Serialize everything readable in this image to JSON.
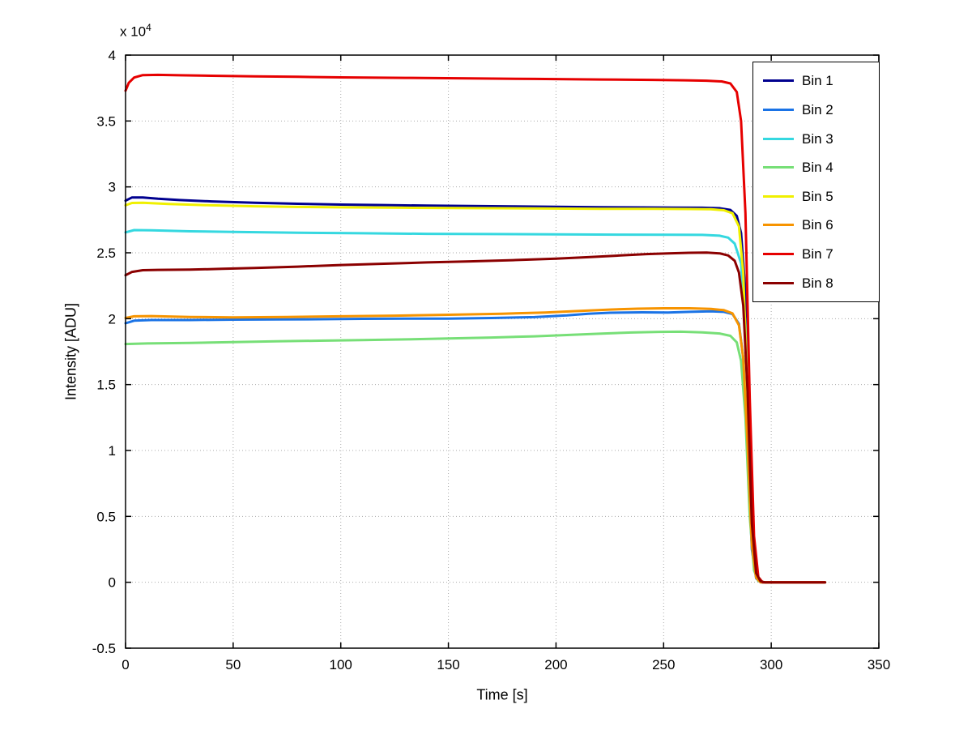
{
  "chart_data": {
    "type": "line",
    "title": "",
    "xlabel": "Time [s]",
    "ylabel": "Intensity [ADU]",
    "y_exponent": {
      "base": "x 10",
      "power": "4"
    },
    "xlim": [
      0,
      350
    ],
    "ylim": [
      -5000,
      40000
    ],
    "x_ticks": {
      "values": [
        0,
        50,
        100,
        150,
        200,
        250,
        300,
        350
      ],
      "labels": [
        "0",
        "50",
        "100",
        "150",
        "200",
        "250",
        "300",
        "350"
      ]
    },
    "y_ticks": {
      "values": [
        -5000,
        0,
        5000,
        10000,
        15000,
        20000,
        25000,
        30000,
        35000,
        40000
      ],
      "labels": [
        "-0.5",
        "0",
        "0.5",
        "1",
        "1.5",
        "2",
        "2.5",
        "3",
        "3.5",
        "4"
      ]
    },
    "grid": "dotted",
    "grid_color": "#aaaaaa",
    "axis_color": "#000000",
    "legend_position": "top-right",
    "series": [
      {
        "name": "Bin 1",
        "color": "#00008F",
        "points": [
          [
            0,
            28950
          ],
          [
            3,
            29200
          ],
          [
            8,
            29200
          ],
          [
            15,
            29100
          ],
          [
            25,
            29000
          ],
          [
            40,
            28900
          ],
          [
            60,
            28800
          ],
          [
            80,
            28720
          ],
          [
            100,
            28660
          ],
          [
            120,
            28620
          ],
          [
            140,
            28580
          ],
          [
            160,
            28550
          ],
          [
            180,
            28520
          ],
          [
            200,
            28490
          ],
          [
            220,
            28460
          ],
          [
            240,
            28440
          ],
          [
            255,
            28430
          ],
          [
            268,
            28420
          ],
          [
            276,
            28380
          ],
          [
            281,
            28250
          ],
          [
            284,
            27800
          ],
          [
            286,
            26500
          ],
          [
            288,
            22000
          ],
          [
            290,
            9000
          ],
          [
            292,
            1200
          ],
          [
            294,
            100
          ],
          [
            296,
            0
          ],
          [
            310,
            0
          ],
          [
            325,
            0
          ]
        ]
      },
      {
        "name": "Bin 2",
        "color": "#1A73E6",
        "points": [
          [
            0,
            19650
          ],
          [
            4,
            19850
          ],
          [
            12,
            19900
          ],
          [
            30,
            19900
          ],
          [
            50,
            19930
          ],
          [
            70,
            19940
          ],
          [
            90,
            19960
          ],
          [
            110,
            19990
          ],
          [
            130,
            20000
          ],
          [
            150,
            20010
          ],
          [
            170,
            20050
          ],
          [
            190,
            20120
          ],
          [
            205,
            20250
          ],
          [
            215,
            20380
          ],
          [
            225,
            20450
          ],
          [
            240,
            20480
          ],
          [
            252,
            20470
          ],
          [
            262,
            20520
          ],
          [
            272,
            20560
          ],
          [
            278,
            20520
          ],
          [
            282,
            20350
          ],
          [
            285,
            19600
          ],
          [
            287,
            17000
          ],
          [
            289,
            10000
          ],
          [
            291,
            2500
          ],
          [
            293,
            300
          ],
          [
            295,
            0
          ],
          [
            310,
            0
          ],
          [
            325,
            0
          ]
        ]
      },
      {
        "name": "Bin 3",
        "color": "#35D8E0",
        "points": [
          [
            0,
            26550
          ],
          [
            4,
            26720
          ],
          [
            12,
            26700
          ],
          [
            30,
            26630
          ],
          [
            50,
            26580
          ],
          [
            80,
            26520
          ],
          [
            110,
            26480
          ],
          [
            140,
            26440
          ],
          [
            170,
            26420
          ],
          [
            200,
            26400
          ],
          [
            230,
            26380
          ],
          [
            255,
            26370
          ],
          [
            268,
            26360
          ],
          [
            276,
            26300
          ],
          [
            280,
            26150
          ],
          [
            283,
            25700
          ],
          [
            286,
            24200
          ],
          [
            288,
            19500
          ],
          [
            290,
            9500
          ],
          [
            292,
            2000
          ],
          [
            294,
            200
          ],
          [
            296,
            0
          ],
          [
            310,
            0
          ],
          [
            325,
            0
          ]
        ]
      },
      {
        "name": "Bin 4",
        "color": "#77DF77",
        "points": [
          [
            0,
            18080
          ],
          [
            10,
            18120
          ],
          [
            30,
            18160
          ],
          [
            50,
            18220
          ],
          [
            70,
            18280
          ],
          [
            90,
            18330
          ],
          [
            110,
            18380
          ],
          [
            130,
            18430
          ],
          [
            150,
            18500
          ],
          [
            170,
            18570
          ],
          [
            190,
            18660
          ],
          [
            205,
            18760
          ],
          [
            220,
            18860
          ],
          [
            235,
            18950
          ],
          [
            248,
            19000
          ],
          [
            258,
            19010
          ],
          [
            268,
            18960
          ],
          [
            276,
            18880
          ],
          [
            281,
            18700
          ],
          [
            284,
            18200
          ],
          [
            286,
            16800
          ],
          [
            288,
            12500
          ],
          [
            290,
            5000
          ],
          [
            292,
            900
          ],
          [
            294,
            100
          ],
          [
            296,
            0
          ],
          [
            310,
            0
          ],
          [
            325,
            0
          ]
        ]
      },
      {
        "name": "Bin 5",
        "color": "#F0F000",
        "points": [
          [
            0,
            28600
          ],
          [
            3,
            28780
          ],
          [
            8,
            28800
          ],
          [
            20,
            28700
          ],
          [
            40,
            28600
          ],
          [
            60,
            28530
          ],
          [
            80,
            28480
          ],
          [
            100,
            28450
          ],
          [
            130,
            28420
          ],
          [
            160,
            28390
          ],
          [
            190,
            28360
          ],
          [
            220,
            28340
          ],
          [
            245,
            28330
          ],
          [
            262,
            28320
          ],
          [
            272,
            28300
          ],
          [
            278,
            28230
          ],
          [
            282,
            28000
          ],
          [
            285,
            27000
          ],
          [
            287,
            23500
          ],
          [
            289,
            14000
          ],
          [
            291,
            4200
          ],
          [
            293,
            600
          ],
          [
            295,
            50
          ],
          [
            297,
            0
          ],
          [
            310,
            0
          ],
          [
            325,
            0
          ]
        ]
      },
      {
        "name": "Bin 6",
        "color": "#F79400",
        "points": [
          [
            0,
            20050
          ],
          [
            4,
            20180
          ],
          [
            12,
            20200
          ],
          [
            30,
            20130
          ],
          [
            50,
            20100
          ],
          [
            75,
            20130
          ],
          [
            100,
            20180
          ],
          [
            125,
            20230
          ],
          [
            150,
            20300
          ],
          [
            175,
            20380
          ],
          [
            195,
            20470
          ],
          [
            210,
            20580
          ],
          [
            225,
            20690
          ],
          [
            238,
            20760
          ],
          [
            250,
            20790
          ],
          [
            262,
            20790
          ],
          [
            272,
            20740
          ],
          [
            278,
            20650
          ],
          [
            282,
            20400
          ],
          [
            285,
            19500
          ],
          [
            287,
            17000
          ],
          [
            289,
            10500
          ],
          [
            291,
            2800
          ],
          [
            293,
            350
          ],
          [
            295,
            0
          ],
          [
            310,
            0
          ],
          [
            325,
            0
          ]
        ]
      },
      {
        "name": "Bin 7",
        "color": "#E60000",
        "points": [
          [
            0,
            37300
          ],
          [
            1.5,
            37900
          ],
          [
            4,
            38300
          ],
          [
            8,
            38480
          ],
          [
            15,
            38500
          ],
          [
            25,
            38470
          ],
          [
            40,
            38430
          ],
          [
            60,
            38390
          ],
          [
            80,
            38350
          ],
          [
            100,
            38310
          ],
          [
            130,
            38270
          ],
          [
            160,
            38230
          ],
          [
            190,
            38190
          ],
          [
            220,
            38150
          ],
          [
            245,
            38120
          ],
          [
            260,
            38090
          ],
          [
            270,
            38060
          ],
          [
            277,
            38000
          ],
          [
            281,
            37850
          ],
          [
            284,
            37200
          ],
          [
            286,
            35000
          ],
          [
            288,
            28000
          ],
          [
            290,
            14000
          ],
          [
            292,
            3500
          ],
          [
            294,
            400
          ],
          [
            296,
            0
          ],
          [
            310,
            0
          ],
          [
            325,
            0
          ]
        ]
      },
      {
        "name": "Bin 8",
        "color": "#8B0000",
        "points": [
          [
            0,
            23300
          ],
          [
            3,
            23550
          ],
          [
            8,
            23680
          ],
          [
            15,
            23700
          ],
          [
            30,
            23720
          ],
          [
            45,
            23780
          ],
          [
            60,
            23850
          ],
          [
            80,
            23950
          ],
          [
            100,
            24070
          ],
          [
            120,
            24170
          ],
          [
            140,
            24270
          ],
          [
            160,
            24350
          ],
          [
            180,
            24440
          ],
          [
            200,
            24560
          ],
          [
            215,
            24670
          ],
          [
            230,
            24800
          ],
          [
            242,
            24900
          ],
          [
            252,
            24960
          ],
          [
            262,
            25000
          ],
          [
            270,
            25010
          ],
          [
            276,
            24960
          ],
          [
            280,
            24800
          ],
          [
            283,
            24400
          ],
          [
            285,
            23500
          ],
          [
            287,
            21000
          ],
          [
            289,
            14500
          ],
          [
            291,
            4500
          ],
          [
            293,
            700
          ],
          [
            295,
            80
          ],
          [
            297,
            0
          ],
          [
            310,
            0
          ],
          [
            325,
            0
          ]
        ]
      }
    ]
  }
}
